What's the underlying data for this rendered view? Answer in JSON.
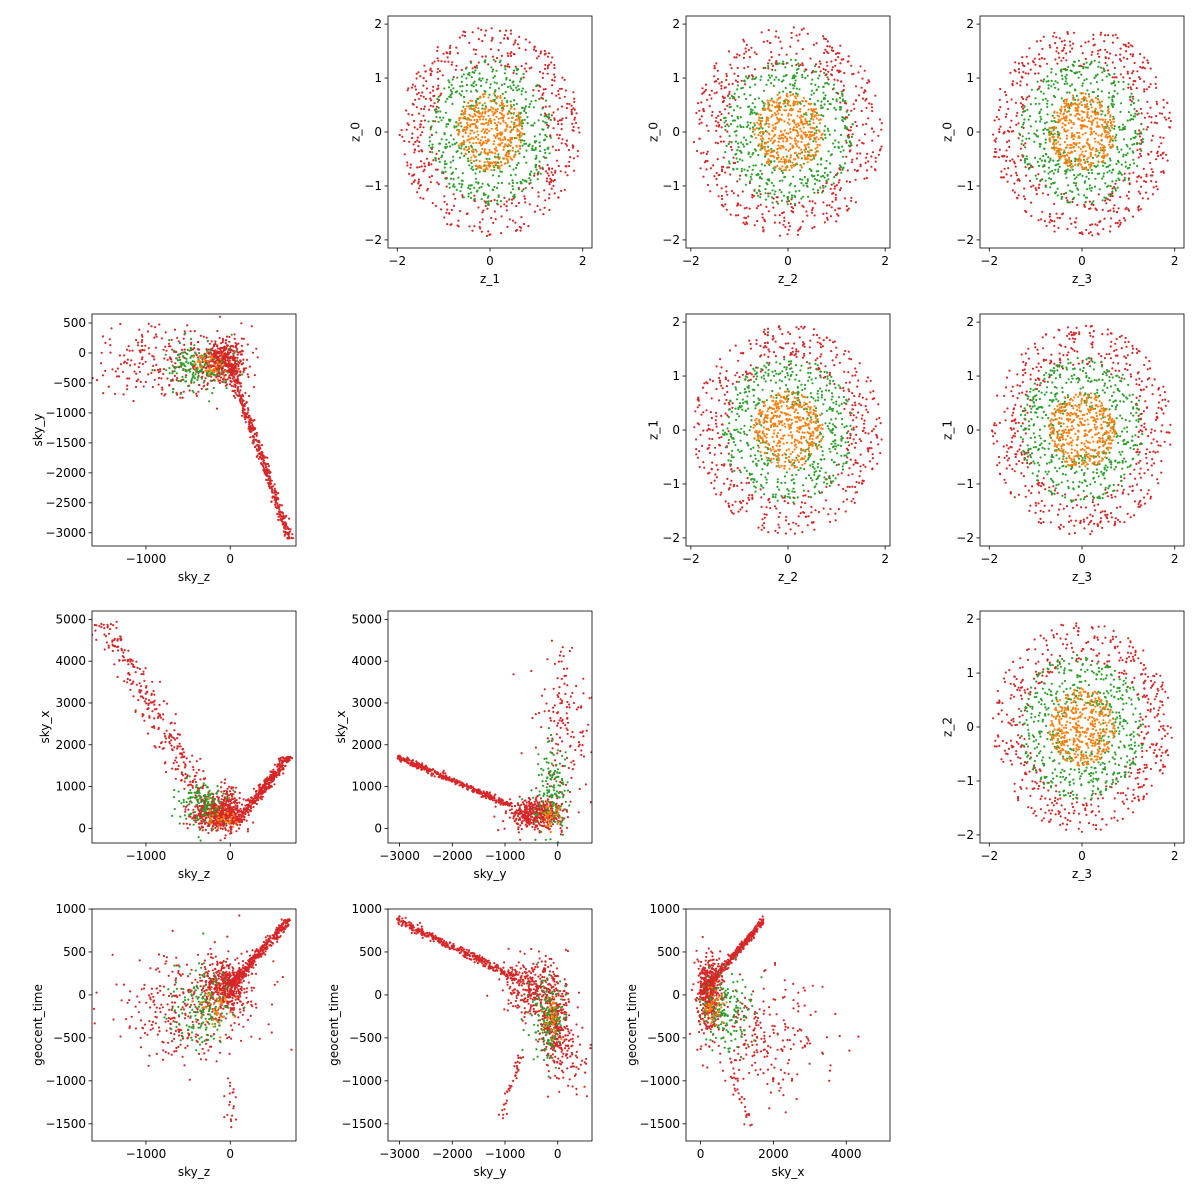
{
  "figure": {
    "title": "",
    "description": "Pair plot of latent and sky/geocent variables"
  },
  "series_colors": {
    "red": "#d62728",
    "green": "#2ca02c",
    "orange": "#ff7f0e"
  },
  "chart_data": [
    {
      "id": "z0_vs_z1",
      "type": "scatter",
      "row": 0,
      "col": 1,
      "kind": "ring",
      "xlabel": "z_1",
      "ylabel": "z_0",
      "xlim": [
        -2.2,
        2.2
      ],
      "ylim": [
        -2.15,
        2.15
      ],
      "xticks": [
        -2,
        0,
        2
      ],
      "yticks": [
        -2,
        -1,
        0,
        1,
        2
      ],
      "series": [
        {
          "name": "red",
          "color": "#d62728",
          "rmin": 1.2,
          "rmax": 1.95,
          "n": 520
        },
        {
          "name": "green",
          "color": "#2ca02c",
          "rmin": 0.45,
          "rmax": 1.35,
          "n": 520
        },
        {
          "name": "orange",
          "color": "#ff7f0e",
          "rmin": 0.0,
          "rmax": 0.72,
          "n": 420
        }
      ]
    },
    {
      "id": "z0_vs_z2",
      "type": "scatter",
      "row": 0,
      "col": 2,
      "kind": "ring",
      "xlabel": "z_2",
      "ylabel": "z_0",
      "xlim": [
        -2.1,
        2.1
      ],
      "ylim": [
        -2.15,
        2.15
      ],
      "xticks": [
        -2,
        0,
        2
      ],
      "yticks": [
        -2,
        -1,
        0,
        1,
        2
      ],
      "series": [
        {
          "name": "red",
          "color": "#d62728",
          "rmin": 1.2,
          "rmax": 1.95,
          "n": 520
        },
        {
          "name": "green",
          "color": "#2ca02c",
          "rmin": 0.45,
          "rmax": 1.35,
          "n": 520
        },
        {
          "name": "orange",
          "color": "#ff7f0e",
          "rmin": 0.0,
          "rmax": 0.72,
          "n": 420
        }
      ]
    },
    {
      "id": "z0_vs_z3",
      "type": "scatter",
      "row": 0,
      "col": 3,
      "kind": "ring",
      "xlabel": "z_3",
      "ylabel": "z_0",
      "xlim": [
        -2.2,
        2.2
      ],
      "ylim": [
        -2.15,
        2.15
      ],
      "xticks": [
        -2,
        0,
        2
      ],
      "yticks": [
        -2,
        -1,
        0,
        1,
        2
      ],
      "series": [
        {
          "name": "red",
          "color": "#d62728",
          "rmin": 1.2,
          "rmax": 1.95,
          "n": 520
        },
        {
          "name": "green",
          "color": "#2ca02c",
          "rmin": 0.45,
          "rmax": 1.35,
          "n": 520
        },
        {
          "name": "orange",
          "color": "#ff7f0e",
          "rmin": 0.0,
          "rmax": 0.72,
          "n": 420
        }
      ]
    },
    {
      "id": "z1_vs_z2",
      "type": "scatter",
      "row": 1,
      "col": 2,
      "kind": "ring",
      "xlabel": "z_2",
      "ylabel": "z_1",
      "xlim": [
        -2.1,
        2.1
      ],
      "ylim": [
        -2.15,
        2.15
      ],
      "xticks": [
        -2,
        0,
        2
      ],
      "yticks": [
        -2,
        -1,
        0,
        1,
        2
      ],
      "series": [
        {
          "name": "red",
          "color": "#d62728",
          "rmin": 1.2,
          "rmax": 1.95,
          "n": 520
        },
        {
          "name": "green",
          "color": "#2ca02c",
          "rmin": 0.45,
          "rmax": 1.35,
          "n": 520
        },
        {
          "name": "orange",
          "color": "#ff7f0e",
          "rmin": 0.0,
          "rmax": 0.72,
          "n": 420
        }
      ]
    },
    {
      "id": "z1_vs_z3",
      "type": "scatter",
      "row": 1,
      "col": 3,
      "kind": "ring",
      "xlabel": "z_3",
      "ylabel": "z_1",
      "xlim": [
        -2.2,
        2.2
      ],
      "ylim": [
        -2.15,
        2.15
      ],
      "xticks": [
        -2,
        0,
        2
      ],
      "yticks": [
        -2,
        -1,
        0,
        1,
        2
      ],
      "series": [
        {
          "name": "red",
          "color": "#d62728",
          "rmin": 1.2,
          "rmax": 1.95,
          "n": 520
        },
        {
          "name": "green",
          "color": "#2ca02c",
          "rmin": 0.45,
          "rmax": 1.35,
          "n": 520
        },
        {
          "name": "orange",
          "color": "#ff7f0e",
          "rmin": 0.0,
          "rmax": 0.72,
          "n": 420
        }
      ]
    },
    {
      "id": "z2_vs_z3",
      "type": "scatter",
      "row": 2,
      "col": 3,
      "kind": "ring",
      "xlabel": "z_3",
      "ylabel": "z_2",
      "xlim": [
        -2.2,
        2.2
      ],
      "ylim": [
        -2.15,
        2.15
      ],
      "xticks": [
        -2,
        0,
        2
      ],
      "yticks": [
        -2,
        -1,
        0,
        1,
        2
      ],
      "series": [
        {
          "name": "red",
          "color": "#d62728",
          "rmin": 1.2,
          "rmax": 1.95,
          "n": 520
        },
        {
          "name": "green",
          "color": "#2ca02c",
          "rmin": 0.45,
          "rmax": 1.35,
          "n": 520
        },
        {
          "name": "orange",
          "color": "#ff7f0e",
          "rmin": 0.0,
          "rmax": 0.72,
          "n": 420
        }
      ]
    },
    {
      "id": "skyy_vs_skyz",
      "type": "scatter",
      "row": 1,
      "col": 0,
      "kind": "clusters",
      "xlabel": "sky_z",
      "ylabel": "sky_y",
      "xlim": [
        -1640,
        780
      ],
      "ylim": [
        -3220,
        650
      ],
      "xticks": [
        -1000,
        0
      ],
      "yticks": [
        -3000,
        -2500,
        -2000,
        -1500,
        -1000,
        -500,
        0,
        500
      ],
      "clusters": [
        {
          "color": "#d62728",
          "cx": -750,
          "cy": -150,
          "sx": 380,
          "sy": 330,
          "n": 240
        },
        {
          "color": "#d62728",
          "cx": -80,
          "cy": -150,
          "sx": 130,
          "sy": 180,
          "n": 450
        },
        {
          "color": "#2ca02c",
          "cx": -400,
          "cy": -250,
          "sx": 180,
          "sy": 200,
          "n": 160
        },
        {
          "color": "#ff7f0e",
          "cx": -250,
          "cy": -200,
          "sx": 120,
          "sy": 120,
          "n": 50
        }
      ],
      "lines": [
        {
          "color": "#d62728",
          "from": [
            0,
            -200
          ],
          "to": [
            700,
            -3100
          ],
          "spread": 25,
          "n": 420
        }
      ]
    },
    {
      "id": "skyx_vs_skyz",
      "type": "scatter",
      "row": 2,
      "col": 0,
      "kind": "clusters",
      "xlabel": "sky_z",
      "ylabel": "sky_x",
      "xlim": [
        -1640,
        780
      ],
      "ylim": [
        -350,
        5200
      ],
      "xticks": [
        -1000,
        0
      ],
      "yticks": [
        0,
        1000,
        2000,
        3000,
        4000,
        5000
      ],
      "clusters": [
        {
          "color": "#d62728",
          "cx": -150,
          "cy": 350,
          "sx": 140,
          "sy": 220,
          "n": 500
        },
        {
          "color": "#2ca02c",
          "cx": -300,
          "cy": 600,
          "sx": 160,
          "sy": 300,
          "n": 140
        },
        {
          "color": "#ff7f0e",
          "cx": -100,
          "cy": 300,
          "sx": 100,
          "sy": 150,
          "n": 40
        },
        {
          "color": "#d62728",
          "cx": 0,
          "cy": 650,
          "sx": 60,
          "sy": 250,
          "n": 80
        }
      ],
      "lines": [
        {
          "color": "#d62728",
          "from": [
            -1500,
            4900
          ],
          "to": [
            -200,
            300
          ],
          "spread": 90,
          "n": 320
        },
        {
          "color": "#d62728",
          "from": [
            50,
            100
          ],
          "to": [
            700,
            1720
          ],
          "spread": 35,
          "n": 380
        }
      ]
    },
    {
      "id": "skyx_vs_skyy",
      "type": "scatter",
      "row": 2,
      "col": 1,
      "kind": "clusters",
      "xlabel": "sky_y",
      "ylabel": "sky_x",
      "xlim": [
        -3220,
        650
      ],
      "ylim": [
        -350,
        5200
      ],
      "xticks": [
        -3000,
        -2000,
        -1000,
        0
      ],
      "yticks": [
        0,
        1000,
        2000,
        3000,
        4000,
        5000
      ],
      "clusters": [
        {
          "color": "#d62728",
          "cx": -400,
          "cy": 350,
          "sx": 260,
          "sy": 180,
          "n": 450
        },
        {
          "color": "#d62728",
          "cx": 100,
          "cy": 2500,
          "sx": 250,
          "sy": 1100,
          "n": 150
        },
        {
          "color": "#2ca02c",
          "cx": -100,
          "cy": 900,
          "sx": 160,
          "sy": 500,
          "n": 150
        },
        {
          "color": "#ff7f0e",
          "cx": -150,
          "cy": 300,
          "sx": 100,
          "sy": 150,
          "n": 40
        }
      ],
      "lines": [
        {
          "color": "#d62728",
          "from": [
            -3050,
            1720
          ],
          "to": [
            -900,
            550
          ],
          "spread": 35,
          "n": 380
        }
      ]
    },
    {
      "id": "geo_vs_skyz",
      "type": "scatter",
      "row": 3,
      "col": 0,
      "kind": "clusters",
      "xlabel": "sky_z",
      "ylabel": "geocent_time",
      "xlim": [
        -1640,
        780
      ],
      "ylim": [
        -1700,
        1000
      ],
      "xticks": [
        -1000,
        0
      ],
      "yticks": [
        -1500,
        -1000,
        -500,
        0,
        500,
        1000
      ],
      "clusters": [
        {
          "color": "#d62728",
          "cx": -500,
          "cy": -150,
          "sx": 420,
          "sy": 330,
          "n": 330
        },
        {
          "color": "#d62728",
          "cx": -50,
          "cy": 100,
          "sx": 150,
          "sy": 160,
          "n": 420
        },
        {
          "color": "#2ca02c",
          "cx": -350,
          "cy": -150,
          "sx": 200,
          "sy": 220,
          "n": 160
        },
        {
          "color": "#ff7f0e",
          "cx": -200,
          "cy": -150,
          "sx": 100,
          "sy": 120,
          "n": 50
        },
        {
          "color": "#d62728",
          "cx": 10,
          "cy": -1250,
          "sx": 40,
          "sy": 170,
          "n": 20
        }
      ],
      "lines": [
        {
          "color": "#d62728",
          "from": [
            0,
            100
          ],
          "to": [
            700,
            880
          ],
          "spread": 25,
          "n": 380
        }
      ]
    },
    {
      "id": "geo_vs_skyy",
      "type": "scatter",
      "row": 3,
      "col": 1,
      "kind": "clusters",
      "xlabel": "sky_y",
      "ylabel": "geocent_time",
      "xlim": [
        -3220,
        650
      ],
      "ylim": [
        -1700,
        1000
      ],
      "xticks": [
        -3000,
        -2000,
        -1000,
        0
      ],
      "yticks": [
        -1500,
        -1000,
        -500,
        0,
        500,
        1000
      ],
      "clusters": [
        {
          "color": "#d62728",
          "cx": -500,
          "cy": 100,
          "sx": 260,
          "sy": 160,
          "n": 300
        },
        {
          "color": "#d62728",
          "cx": -50,
          "cy": -300,
          "sx": 130,
          "sy": 260,
          "n": 300
        },
        {
          "color": "#d62728",
          "cx": 200,
          "cy": -700,
          "sx": 200,
          "sy": 200,
          "n": 80
        },
        {
          "color": "#2ca02c",
          "cx": -200,
          "cy": -300,
          "sx": 160,
          "sy": 250,
          "n": 160
        },
        {
          "color": "#ff7f0e",
          "cx": -100,
          "cy": -250,
          "sx": 80,
          "sy": 120,
          "n": 40
        }
      ],
      "lines": [
        {
          "color": "#d62728",
          "from": [
            -3050,
            880
          ],
          "to": [
            -800,
            200
          ],
          "spread": 25,
          "n": 360
        },
        {
          "color": "#d62728",
          "from": [
            -700,
            -700
          ],
          "to": [
            -1100,
            -1450
          ],
          "spread": 30,
          "n": 40
        }
      ]
    },
    {
      "id": "geo_vs_skyx",
      "type": "scatter",
      "row": 3,
      "col": 2,
      "kind": "clusters",
      "xlabel": "sky_x",
      "ylabel": "geocent_time",
      "xlim": [
        -400,
        5200
      ],
      "ylim": [
        -1700,
        1000
      ],
      "xticks": [
        0,
        2000,
        4000
      ],
      "yticks": [
        -1500,
        -1000,
        -500,
        0,
        500,
        1000
      ],
      "clusters": [
        {
          "color": "#d62728",
          "cx": 250,
          "cy": 50,
          "sx": 160,
          "sy": 200,
          "n": 450
        },
        {
          "color": "#d62728",
          "cx": 1700,
          "cy": -500,
          "sx": 900,
          "sy": 350,
          "n": 240
        },
        {
          "color": "#2ca02c",
          "cx": 700,
          "cy": -200,
          "sx": 350,
          "sy": 230,
          "n": 160
        },
        {
          "color": "#ff7f0e",
          "cx": 350,
          "cy": -150,
          "sx": 150,
          "sy": 120,
          "n": 50
        }
      ],
      "lines": [
        {
          "color": "#d62728",
          "from": [
            0,
            0
          ],
          "to": [
            1750,
            880
          ],
          "spread": 25,
          "n": 380
        },
        {
          "color": "#d62728",
          "from": [
            800,
            -800
          ],
          "to": [
            1400,
            -1550
          ],
          "spread": 40,
          "n": 25
        }
      ]
    }
  ]
}
